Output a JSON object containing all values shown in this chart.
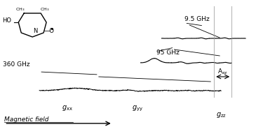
{
  "title": "",
  "background_color": "#ffffff",
  "molecule_label": "HO–N–O•",
  "freq_labels": [
    "9.5 GHz",
    "95 GHz",
    "360 GHz"
  ],
  "g_labels": [
    "g_xx",
    "g_yy",
    "g_zz"
  ],
  "azz_label": "A_zz",
  "mag_field_label": "Magnetic field",
  "line_color": "#000000",
  "gray_line_color": "#999999",
  "text_color": "#000000"
}
